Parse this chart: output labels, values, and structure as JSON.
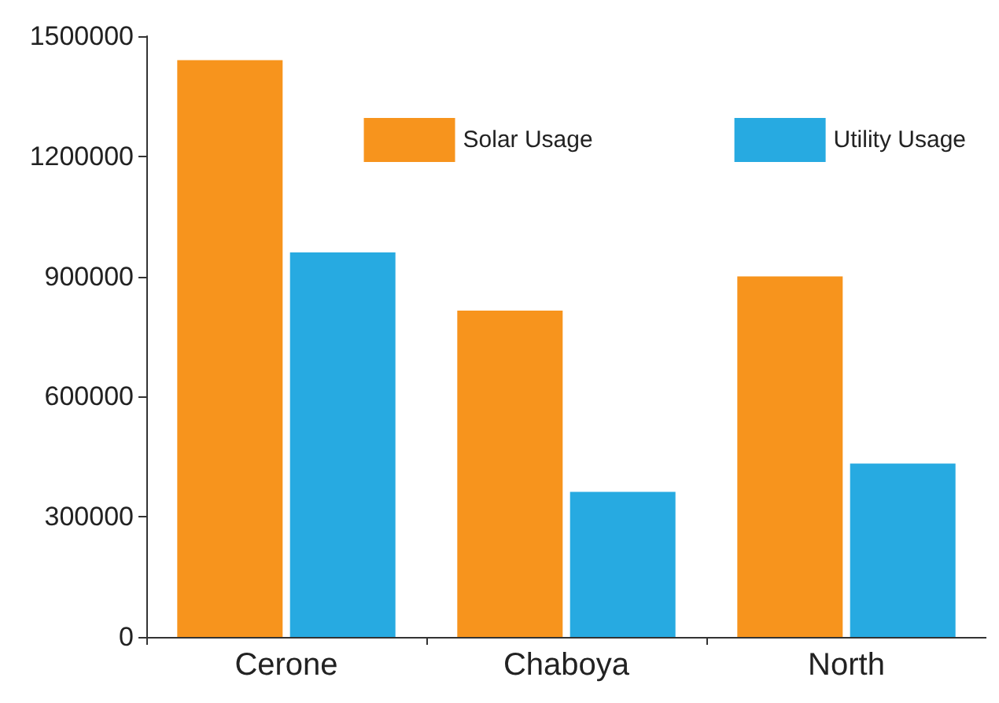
{
  "chart_data": {
    "type": "bar",
    "categories": [
      "Cerone",
      "Chaboya",
      "North"
    ],
    "series": [
      {
        "name": "Solar Usage",
        "color": "#f7941d",
        "values": [
          1440000,
          815000,
          900000
        ]
      },
      {
        "name": "Utility Usage",
        "color": "#27aae1",
        "values": [
          960000,
          362000,
          433000
        ]
      }
    ],
    "ylim": [
      0,
      1500000
    ],
    "yticks": [
      0,
      300000,
      600000,
      900000,
      1200000,
      1500000
    ],
    "grid": false,
    "legend": "top right"
  }
}
